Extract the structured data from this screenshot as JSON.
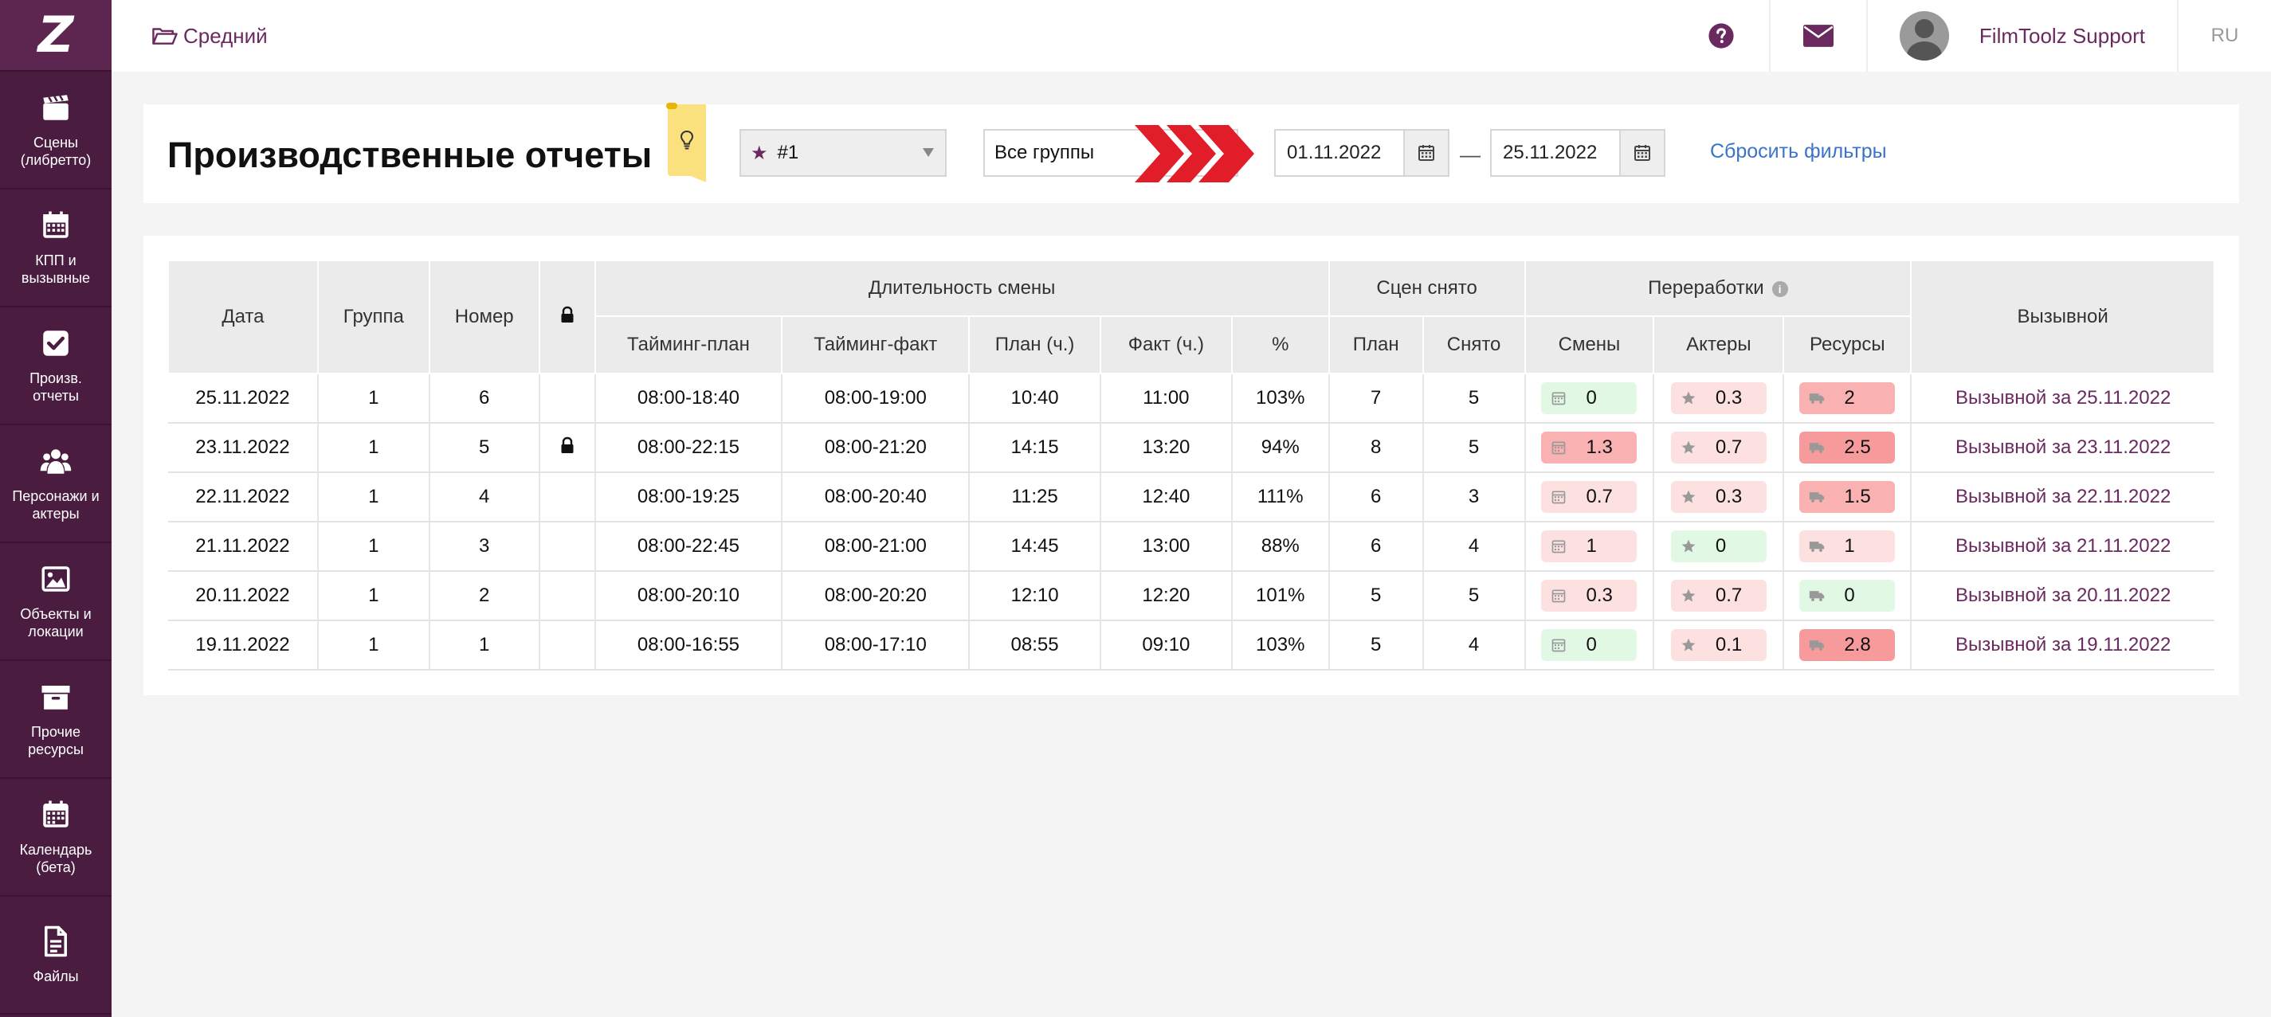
{
  "sidebar": {
    "logo": "Z",
    "items": [
      {
        "label": "Сцены\n(либретто)",
        "icon": "clapperboard-icon"
      },
      {
        "label": "КПП и\nвызывные",
        "icon": "calendar-icon"
      },
      {
        "label": "Произв. отчеты",
        "icon": "check-square-icon"
      },
      {
        "label": "Персонажи и\nактеры",
        "icon": "users-icon"
      },
      {
        "label": "Объекты и\nлокации",
        "icon": "image-icon"
      },
      {
        "label": "Прочие\nресурсы",
        "icon": "archive-box-icon"
      },
      {
        "label": "Календарь\n(бета)",
        "icon": "calendar-grid-icon"
      },
      {
        "label": "Файлы",
        "icon": "file-icon"
      }
    ]
  },
  "header": {
    "breadcrumb": "Средний",
    "user_name": "FilmToolz Support",
    "language": "RU"
  },
  "filters": {
    "page_title": "Производственные отчеты",
    "project": "#1",
    "groups": "Все группы",
    "date_from": "01.11.2022",
    "date_to": "25.11.2022",
    "date_separator": "—",
    "reset_label": "Сбросить фильтры"
  },
  "table": {
    "headers": {
      "date": "Дата",
      "group": "Группа",
      "number": "Номер",
      "duration": "Длительность смены",
      "timing_plan": "Тайминг-план",
      "timing_fact": "Тайминг-факт",
      "plan_h": "План (ч.)",
      "fact_h": "Факт (ч.)",
      "percent": "%",
      "scenes": "Сцен снято",
      "scenes_plan": "План",
      "scenes_done": "Снято",
      "overtime": "Переработки",
      "shifts": "Смены",
      "actors": "Актеры",
      "resources": "Ресурсы",
      "callsheet": "Вызывной"
    },
    "rows": [
      {
        "date": "25.11.2022",
        "group": "1",
        "number": "6",
        "locked": false,
        "timing_plan": "08:00-18:40",
        "timing_fact": "08:00-19:00",
        "plan_h": "10:40",
        "fact_h": "11:00",
        "percent": "103%",
        "scenes_plan": "7",
        "scenes_done": "5",
        "shifts": "0",
        "shifts_level": "green",
        "actors": "0.3",
        "actors_level": "light",
        "resources": "2",
        "resources_level": "mid",
        "callsheet": "Вызывной за 25.11.2022"
      },
      {
        "date": "23.11.2022",
        "group": "1",
        "number": "5",
        "locked": true,
        "timing_plan": "08:00-22:15",
        "timing_fact": "08:00-21:20",
        "plan_h": "14:15",
        "fact_h": "13:20",
        "percent": "94%",
        "scenes_plan": "8",
        "scenes_done": "5",
        "shifts": "1.3",
        "shifts_level": "mid",
        "actors": "0.7",
        "actors_level": "light",
        "resources": "2.5",
        "resources_level": "strong",
        "callsheet": "Вызывной за 23.11.2022"
      },
      {
        "date": "22.11.2022",
        "group": "1",
        "number": "4",
        "locked": false,
        "timing_plan": "08:00-19:25",
        "timing_fact": "08:00-20:40",
        "plan_h": "11:25",
        "fact_h": "12:40",
        "percent": "111%",
        "scenes_plan": "6",
        "scenes_done": "3",
        "shifts": "0.7",
        "shifts_level": "light",
        "actors": "0.3",
        "actors_level": "light",
        "resources": "1.5",
        "resources_level": "mid",
        "callsheet": "Вызывной за 22.11.2022"
      },
      {
        "date": "21.11.2022",
        "group": "1",
        "number": "3",
        "locked": false,
        "timing_plan": "08:00-22:45",
        "timing_fact": "08:00-21:00",
        "plan_h": "14:45",
        "fact_h": "13:00",
        "percent": "88%",
        "scenes_plan": "6",
        "scenes_done": "4",
        "shifts": "1",
        "shifts_level": "light",
        "actors": "0",
        "actors_level": "green",
        "resources": "1",
        "resources_level": "light",
        "callsheet": "Вызывной за 21.11.2022"
      },
      {
        "date": "20.11.2022",
        "group": "1",
        "number": "2",
        "locked": false,
        "timing_plan": "08:00-20:10",
        "timing_fact": "08:00-20:20",
        "plan_h": "12:10",
        "fact_h": "12:20",
        "percent": "101%",
        "scenes_plan": "5",
        "scenes_done": "5",
        "shifts": "0.3",
        "shifts_level": "light",
        "actors": "0.7",
        "actors_level": "light",
        "resources": "0",
        "resources_level": "green",
        "callsheet": "Вызывной за 20.11.2022"
      },
      {
        "date": "19.11.2022",
        "group": "1",
        "number": "1",
        "locked": false,
        "timing_plan": "08:00-16:55",
        "timing_fact": "08:00-17:10",
        "plan_h": "08:55",
        "fact_h": "09:10",
        "percent": "103%",
        "scenes_plan": "5",
        "scenes_done": "4",
        "shifts": "0",
        "shifts_level": "green",
        "actors": "0.1",
        "actors_level": "light",
        "resources": "2.8",
        "resources_level": "strong",
        "callsheet": "Вызывной за 19.11.2022"
      }
    ]
  },
  "colors": {
    "brand": "#4a1d40",
    "link": "#6b2a5f",
    "accent_red": "#e11d2a",
    "reset_link": "#3a73c8"
  }
}
